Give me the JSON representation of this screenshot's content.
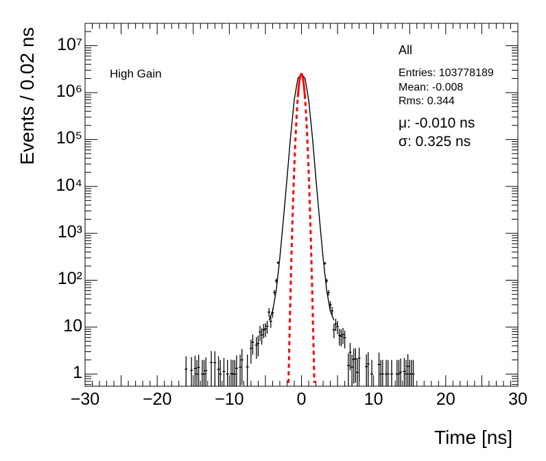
{
  "chart_data": {
    "type": "histogram",
    "xlabel": "Time [ns]",
    "ylabel": "Events / 0.02 ns",
    "xlim": [
      -30,
      30
    ],
    "ylim": [
      0.55,
      30000000
    ],
    "yscale": "log",
    "x_ticks": [
      -30,
      -20,
      -10,
      0,
      10,
      20,
      30
    ],
    "y_ticks": [
      {
        "value": 1,
        "label": "1"
      },
      {
        "value": 10,
        "label": "10"
      },
      {
        "value": 100,
        "label": "10²"
      },
      {
        "value": 1000,
        "label": "10³"
      },
      {
        "value": 10000,
        "label": "10⁴"
      },
      {
        "value": 100000,
        "label": "10⁵"
      },
      {
        "value": 1000000,
        "label": "10⁶"
      },
      {
        "value": 10000000,
        "label": "10⁷"
      }
    ],
    "annotation": "High Gain",
    "stats": {
      "title": "All",
      "entries": "Entries: 103778189",
      "mean": "Mean: -0.008",
      "rms": "Rms: 0.344"
    },
    "fit": {
      "mu_text": "μ: -0.010 ns",
      "sigma_text": "σ: 0.325 ns",
      "mu": -0.01,
      "sigma": 0.325,
      "peak": 2500000,
      "color": "#ff0000"
    },
    "series": [
      {
        "kind": "histogram",
        "color": "#000000",
        "x": [
          -16,
          -12.5,
          -10.5,
          -9.5,
          -8.5,
          -7.5,
          -7,
          -6.5,
          -6,
          -5.5,
          -5,
          -4.5,
          -4,
          -3.5,
          -3,
          -2.5,
          -2,
          -1.5,
          -1,
          -0.5,
          0,
          0.5,
          1,
          1.5,
          2,
          2.5,
          3,
          3.5,
          4,
          4.5,
          5,
          5.5,
          6,
          6.5,
          7,
          8,
          9,
          10,
          12,
          14,
          16,
          18
        ],
        "y": [
          1,
          1,
          1,
          1,
          1.3,
          2,
          2.5,
          3,
          4,
          6,
          10,
          14,
          22,
          60,
          300,
          2000,
          15000,
          120000,
          700000,
          2000000,
          2500000,
          2000000,
          700000,
          120000,
          15000,
          2000,
          300,
          60,
          22,
          14,
          10,
          6,
          4,
          2.5,
          2,
          1.3,
          1,
          1,
          1,
          1,
          1,
          1
        ]
      }
    ]
  }
}
